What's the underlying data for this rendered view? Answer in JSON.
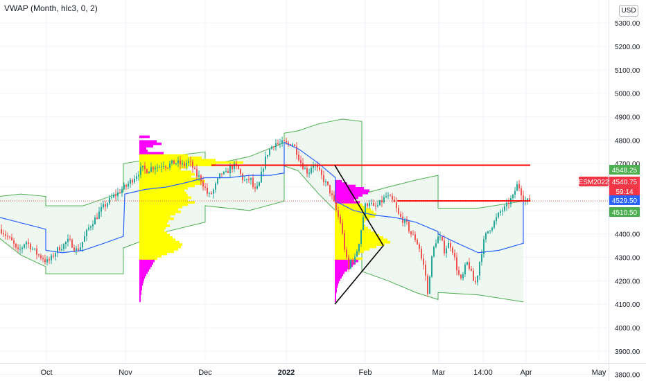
{
  "indicator": {
    "title": "VWAP (Month, hlc3, 0, 2)"
  },
  "axis": {
    "currency": "USD"
  },
  "colors": {
    "grid": "#f0f3fa",
    "up": "#26a69a",
    "down": "#ef5350",
    "vwap": "#2962ff",
    "band": "#4caf50",
    "band_fill": "#e8f5e9",
    "profile_yellow": "#ffff00",
    "profile_magenta": "#ff00ff",
    "hline": "#ff0000",
    "symbol_tag": "#f23645",
    "green_tag": "#4caf50",
    "blue_tag": "#2962ff"
  },
  "chart_data": {
    "type": "candlestick",
    "symbol": "ESM2022",
    "x_ticks": [
      "Oct",
      "Nov",
      "Dec",
      "2022",
      "Feb",
      "Mar",
      "14:00",
      "Apr",
      "May"
    ],
    "y_ticks": [
      5300,
      5200,
      5100,
      5000,
      4900,
      4800,
      4700,
      4600,
      4500,
      4400,
      4300,
      4200,
      4100,
      4000,
      3900,
      3800
    ],
    "y_tick_labels": [
      "5300.00",
      "5200.00",
      "5100.00",
      "5000.00",
      "4900.00",
      "4800.00",
      "4700.00",
      "4600.00",
      "4500.00",
      "4400.00",
      "4300.00",
      "4200.00",
      "4100.00",
      "4000.00",
      "3900.00",
      "3800.00"
    ],
    "ylim": [
      3770,
      5310
    ],
    "price_path": [
      [
        0,
        4420
      ],
      [
        6,
        4400
      ],
      [
        12,
        4380
      ],
      [
        18,
        4360
      ],
      [
        24,
        4320
      ],
      [
        30,
        4340
      ],
      [
        36,
        4370
      ],
      [
        42,
        4350
      ],
      [
        48,
        4330
      ],
      [
        54,
        4310
      ],
      [
        60,
        4300
      ],
      [
        66,
        4280
      ],
      [
        72,
        4290
      ],
      [
        78,
        4320
      ],
      [
        84,
        4340
      ],
      [
        90,
        4350
      ],
      [
        96,
        4370
      ],
      [
        102,
        4360
      ],
      [
        108,
        4330
      ],
      [
        114,
        4340
      ],
      [
        120,
        4380
      ],
      [
        126,
        4420
      ],
      [
        132,
        4450
      ],
      [
        138,
        4470
      ],
      [
        144,
        4500
      ],
      [
        150,
        4520
      ],
      [
        156,
        4540
      ],
      [
        162,
        4560
      ],
      [
        168,
        4570
      ],
      [
        174,
        4590
      ],
      [
        180,
        4600
      ],
      [
        186,
        4620
      ],
      [
        192,
        4640
      ],
      [
        198,
        4660
      ],
      [
        204,
        4680
      ],
      [
        210,
        4670
      ],
      [
        216,
        4680
      ],
      [
        222,
        4690
      ],
      [
        228,
        4685
      ],
      [
        234,
        4700
      ],
      [
        240,
        4690
      ],
      [
        246,
        4700
      ],
      [
        252,
        4705
      ],
      [
        258,
        4700
      ],
      [
        264,
        4690
      ],
      [
        270,
        4710
      ],
      [
        276,
        4690
      ],
      [
        282,
        4650
      ],
      [
        288,
        4640
      ],
      [
        294,
        4600
      ],
      [
        300,
        4560
      ],
      [
        306,
        4580
      ],
      [
        312,
        4620
      ],
      [
        318,
        4660
      ],
      [
        324,
        4650
      ],
      [
        330,
        4680
      ],
      [
        336,
        4690
      ],
      [
        342,
        4680
      ],
      [
        348,
        4640
      ],
      [
        354,
        4620
      ],
      [
        360,
        4640
      ],
      [
        366,
        4580
      ],
      [
        372,
        4600
      ],
      [
        378,
        4680
      ],
      [
        384,
        4740
      ],
      [
        390,
        4770
      ],
      [
        396,
        4790
      ],
      [
        402,
        4780
      ],
      [
        408,
        4790
      ],
      [
        414,
        4780
      ],
      [
        420,
        4790
      ],
      [
        426,
        4760
      ],
      [
        432,
        4710
      ],
      [
        438,
        4680
      ],
      [
        444,
        4660
      ],
      [
        450,
        4700
      ],
      [
        456,
        4680
      ],
      [
        462,
        4650
      ],
      [
        468,
        4620
      ],
      [
        474,
        4590
      ],
      [
        480,
        4540
      ],
      [
        486,
        4480
      ],
      [
        490,
        4450
      ],
      [
        494,
        4380
      ],
      [
        498,
        4300
      ],
      [
        502,
        4250
      ],
      [
        506,
        4300
      ],
      [
        510,
        4280
      ],
      [
        514,
        4330
      ],
      [
        518,
        4380
      ],
      [
        522,
        4460
      ],
      [
        526,
        4520
      ],
      [
        532,
        4540
      ],
      [
        538,
        4510
      ],
      [
        544,
        4520
      ],
      [
        550,
        4540
      ],
      [
        556,
        4560
      ],
      [
        562,
        4550
      ],
      [
        568,
        4530
      ],
      [
        574,
        4480
      ],
      [
        580,
        4460
      ],
      [
        586,
        4440
      ],
      [
        592,
        4400
      ],
      [
        598,
        4380
      ],
      [
        604,
        4340
      ],
      [
        608,
        4280
      ],
      [
        612,
        4250
      ],
      [
        616,
        4140
      ],
      [
        620,
        4260
      ],
      [
        624,
        4330
      ],
      [
        628,
        4370
      ],
      [
        632,
        4390
      ],
      [
        636,
        4370
      ],
      [
        640,
        4330
      ],
      [
        644,
        4350
      ],
      [
        648,
        4360
      ],
      [
        652,
        4330
      ],
      [
        656,
        4280
      ],
      [
        660,
        4230
      ],
      [
        664,
        4200
      ],
      [
        668,
        4230
      ],
      [
        672,
        4280
      ],
      [
        676,
        4260
      ],
      [
        680,
        4220
      ],
      [
        684,
        4180
      ],
      [
        688,
        4230
      ],
      [
        692,
        4300
      ],
      [
        698,
        4380
      ],
      [
        704,
        4420
      ],
      [
        710,
        4440
      ],
      [
        716,
        4470
      ],
      [
        722,
        4500
      ],
      [
        728,
        4510
      ],
      [
        734,
        4540
      ],
      [
        740,
        4560
      ],
      [
        744,
        4610
      ],
      [
        748,
        4600
      ],
      [
        752,
        4570
      ],
      [
        756,
        4540
      ],
      [
        760,
        4540
      ],
      [
        764,
        4548
      ]
    ],
    "vwap_path": [
      [
        0,
        4470
      ],
      [
        20,
        4455
      ],
      [
        40,
        4440
      ],
      [
        66,
        4420
      ],
      [
        66,
        4330
      ],
      [
        90,
        4320
      ],
      [
        120,
        4330
      ],
      [
        150,
        4360
      ],
      [
        178,
        4390
      ],
      [
        180,
        4570
      ],
      [
        210,
        4590
      ],
      [
        240,
        4600
      ],
      [
        270,
        4620
      ],
      [
        296,
        4640
      ],
      [
        296,
        4640
      ],
      [
        330,
        4640
      ],
      [
        360,
        4650
      ],
      [
        390,
        4650
      ],
      [
        410,
        4660
      ],
      [
        410,
        4790
      ],
      [
        432,
        4760
      ],
      [
        460,
        4700
      ],
      [
        484,
        4640
      ],
      [
        484,
        4540
      ],
      [
        510,
        4500
      ],
      [
        540,
        4480
      ],
      [
        570,
        4470
      ],
      [
        600,
        4450
      ],
      [
        632,
        4410
      ],
      [
        632,
        4400
      ],
      [
        660,
        4360
      ],
      [
        690,
        4320
      ],
      [
        720,
        4330
      ],
      [
        755,
        4360
      ],
      [
        755,
        4540
      ],
      [
        764,
        4540
      ]
    ],
    "upper_band_path": [
      [
        0,
        4560
      ],
      [
        30,
        4570
      ],
      [
        66,
        4560
      ],
      [
        66,
        4520
      ],
      [
        120,
        4520
      ],
      [
        178,
        4580
      ],
      [
        178,
        4700
      ],
      [
        240,
        4730
      ],
      [
        296,
        4750
      ],
      [
        296,
        4690
      ],
      [
        360,
        4730
      ],
      [
        410,
        4790
      ],
      [
        410,
        4830
      ],
      [
        430,
        4840
      ],
      [
        460,
        4870
      ],
      [
        494,
        4890
      ],
      [
        522,
        4880
      ],
      [
        522,
        4570
      ],
      [
        560,
        4600
      ],
      [
        600,
        4630
      ],
      [
        632,
        4650
      ],
      [
        632,
        4510
      ],
      [
        690,
        4510
      ],
      [
        755,
        4540
      ]
    ],
    "lower_band_path": [
      [
        0,
        4380
      ],
      [
        30,
        4310
      ],
      [
        66,
        4260
      ],
      [
        66,
        4230
      ],
      [
        120,
        4230
      ],
      [
        178,
        4230
      ],
      [
        178,
        4340
      ],
      [
        240,
        4410
      ],
      [
        296,
        4450
      ],
      [
        296,
        4520
      ],
      [
        360,
        4500
      ],
      [
        410,
        4540
      ],
      [
        410,
        4690
      ],
      [
        430,
        4670
      ],
      [
        460,
        4570
      ],
      [
        494,
        4470
      ],
      [
        522,
        4420
      ],
      [
        522,
        4240
      ],
      [
        560,
        4200
      ],
      [
        600,
        4150
      ],
      [
        632,
        4120
      ],
      [
        632,
        4150
      ],
      [
        690,
        4140
      ],
      [
        755,
        4110
      ]
    ],
    "volume_profiles": [
      {
        "x_start": 201,
        "price_low": 4100,
        "price_high": 4810,
        "value_area": [
          4290,
          4730
        ],
        "rows": [
          [
            4810,
            15
          ],
          [
            4790,
            25
          ],
          [
            4780,
            32
          ],
          [
            4770,
            20
          ],
          [
            4760,
            10
          ],
          [
            4750,
            12
          ],
          [
            4740,
            35
          ],
          [
            4730,
            70
          ],
          [
            4720,
            90
          ],
          [
            4710,
            110
          ],
          [
            4700,
            150
          ],
          [
            4690,
            110
          ],
          [
            4680,
            70
          ],
          [
            4670,
            60
          ],
          [
            4660,
            75
          ],
          [
            4650,
            80
          ],
          [
            4640,
            75
          ],
          [
            4630,
            90
          ],
          [
            4620,
            95
          ],
          [
            4610,
            90
          ],
          [
            4600,
            80
          ],
          [
            4590,
            70
          ],
          [
            4580,
            65
          ],
          [
            4570,
            68
          ],
          [
            4560,
            70
          ],
          [
            4550,
            75
          ],
          [
            4540,
            70
          ],
          [
            4530,
            80
          ],
          [
            4520,
            70
          ],
          [
            4510,
            62
          ],
          [
            4500,
            56
          ],
          [
            4490,
            60
          ],
          [
            4480,
            52
          ],
          [
            4470,
            45
          ],
          [
            4460,
            50
          ],
          [
            4450,
            42
          ],
          [
            4440,
            40
          ],
          [
            4430,
            44
          ],
          [
            4420,
            38
          ],
          [
            4410,
            36
          ],
          [
            4400,
            40
          ],
          [
            4390,
            44
          ],
          [
            4380,
            48
          ],
          [
            4370,
            52
          ],
          [
            4360,
            58
          ],
          [
            4350,
            62
          ],
          [
            4340,
            60
          ],
          [
            4330,
            56
          ],
          [
            4320,
            50
          ],
          [
            4310,
            40
          ],
          [
            4300,
            32
          ],
          [
            4290,
            26
          ],
          [
            4280,
            22
          ],
          [
            4270,
            20
          ],
          [
            4260,
            18
          ],
          [
            4250,
            16
          ],
          [
            4240,
            14
          ],
          [
            4230,
            12
          ],
          [
            4220,
            10
          ],
          [
            4210,
            8
          ],
          [
            4200,
            7
          ],
          [
            4190,
            6
          ],
          [
            4180,
            5
          ],
          [
            4170,
            4
          ],
          [
            4160,
            4
          ],
          [
            4150,
            3
          ],
          [
            4140,
            3
          ],
          [
            4130,
            2
          ],
          [
            4120,
            2
          ],
          [
            4110,
            2
          ]
        ]
      },
      {
        "x_start": 483,
        "price_low": 4100,
        "price_high": 4630,
        "value_area": [
          4290,
          4520
        ],
        "rows": [
          [
            4620,
            10
          ],
          [
            4610,
            18
          ],
          [
            4600,
            30
          ],
          [
            4590,
            42
          ],
          [
            4580,
            50
          ],
          [
            4570,
            48
          ],
          [
            4560,
            40
          ],
          [
            4550,
            34
          ],
          [
            4540,
            28
          ],
          [
            4530,
            36
          ],
          [
            4520,
            40
          ],
          [
            4510,
            44
          ],
          [
            4500,
            52
          ],
          [
            4490,
            56
          ],
          [
            4480,
            60
          ],
          [
            4470,
            58
          ],
          [
            4460,
            50
          ],
          [
            4450,
            44
          ],
          [
            4440,
            40
          ],
          [
            4430,
            44
          ],
          [
            4420,
            48
          ],
          [
            4410,
            52
          ],
          [
            4400,
            58
          ],
          [
            4390,
            64
          ],
          [
            4380,
            70
          ],
          [
            4370,
            76
          ],
          [
            4360,
            80
          ],
          [
            4350,
            72
          ],
          [
            4340,
            60
          ],
          [
            4330,
            50
          ],
          [
            4320,
            42
          ],
          [
            4310,
            36
          ],
          [
            4300,
            30
          ],
          [
            4290,
            40
          ],
          [
            4280,
            34
          ],
          [
            4270,
            30
          ],
          [
            4260,
            26
          ],
          [
            4250,
            22
          ],
          [
            4240,
            18
          ],
          [
            4230,
            14
          ],
          [
            4220,
            12
          ],
          [
            4210,
            10
          ],
          [
            4200,
            8
          ],
          [
            4190,
            6
          ],
          [
            4180,
            5
          ],
          [
            4170,
            4
          ],
          [
            4160,
            3
          ],
          [
            4150,
            3
          ],
          [
            4140,
            2
          ],
          [
            4130,
            2
          ],
          [
            4120,
            2
          ],
          [
            4110,
            2
          ]
        ]
      }
    ],
    "horizontal_lines": [
      {
        "price": 4693,
        "x_start": 305,
        "x_end": 765
      },
      {
        "price": 4541,
        "x_start": 573,
        "x_end": 765
      }
    ],
    "triangle": [
      [
        483,
        4693
      ],
      [
        553,
        4350
      ],
      [
        483,
        4100
      ]
    ],
    "current_price": 4540.75,
    "price_labels": [
      {
        "text": "4548.25",
        "price": 4548.25,
        "kind": "green"
      },
      {
        "text": "ESM2022",
        "price": 4540.75,
        "kind": "symbol"
      },
      {
        "text": "4540.75",
        "price": 4540.75,
        "kind": "last"
      },
      {
        "text": "59:14",
        "price": 4540.75,
        "kind": "countdown"
      },
      {
        "text": "4529.50",
        "price": 4529.5,
        "kind": "blue"
      },
      {
        "text": "4510.50",
        "price": 4510.5,
        "kind": "green"
      }
    ]
  }
}
